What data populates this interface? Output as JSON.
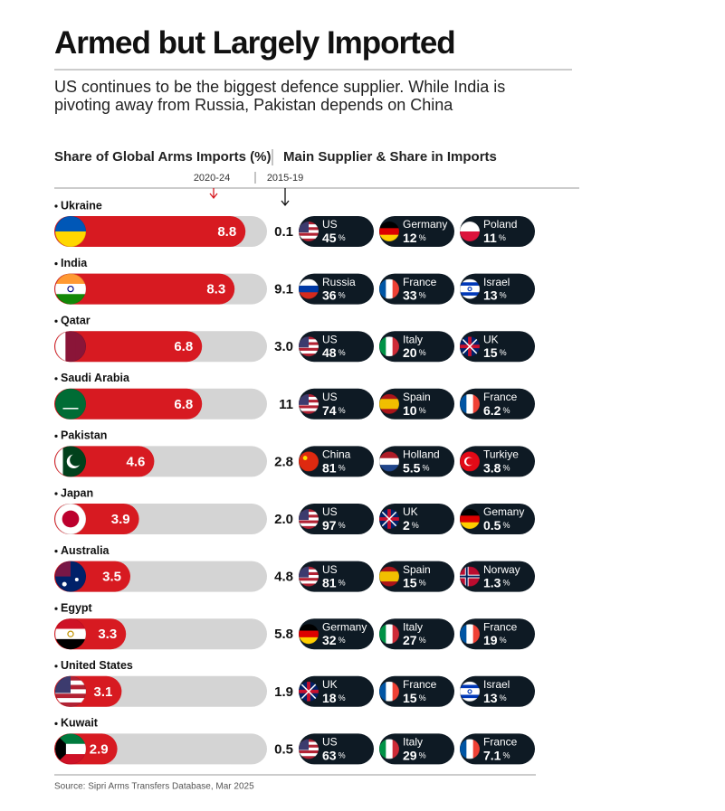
{
  "chart_data": {
    "type": "bar",
    "title": "Armed but Largely Imported",
    "subtitle": "US continues to be the biggest defence supplier. While India is pivoting away from Russia, Pakistan depends on China",
    "left_header": "Share of Global Arms Imports (%)",
    "right_header": "Main Supplier & Share in Imports",
    "categories": [
      "Ukraine",
      "India",
      "Qatar",
      "Saudi Arabia",
      "Pakistan",
      "Japan",
      "Australia",
      "Egypt",
      "United States",
      "Kuwait"
    ],
    "series": [
      {
        "name": "2020-24",
        "color": "#d71a21",
        "values": [
          8.8,
          8.3,
          6.8,
          6.8,
          4.6,
          3.9,
          3.5,
          3.3,
          3.1,
          2.9
        ]
      },
      {
        "name": "2015-19",
        "color": "#111111",
        "values": [
          0.1,
          9.1,
          3.0,
          11,
          2.8,
          2.0,
          4.8,
          5.8,
          1.9,
          0.5
        ],
        "value_labels": [
          "0.1",
          "9.1",
          "3.0",
          "11",
          "2.8",
          "2.0",
          "4.8",
          "5.8",
          "1.9",
          "0.5"
        ]
      }
    ],
    "share_unit": "%",
    "suppliers": [
      [
        {
          "name": "US",
          "share": 45
        },
        {
          "name": "Germany",
          "share": 12
        },
        {
          "name": "Poland",
          "share": 11
        }
      ],
      [
        {
          "name": "Russia",
          "share": 36
        },
        {
          "name": "France",
          "share": 33
        },
        {
          "name": "Israel",
          "share": 13
        }
      ],
      [
        {
          "name": "US",
          "share": 48
        },
        {
          "name": "Italy",
          "share": 20
        },
        {
          "name": "UK",
          "share": 15
        }
      ],
      [
        {
          "name": "US",
          "share": 74
        },
        {
          "name": "Spain",
          "share": 10
        },
        {
          "name": "France",
          "share": 6.2
        }
      ],
      [
        {
          "name": "China",
          "share": 81
        },
        {
          "name": "Holland",
          "share": 5.5
        },
        {
          "name": "Turkiye",
          "share": 3.8
        }
      ],
      [
        {
          "name": "US",
          "share": 97
        },
        {
          "name": "UK",
          "share": 2
        },
        {
          "name": "Gemany",
          "share": 0.5
        }
      ],
      [
        {
          "name": "US",
          "share": 81
        },
        {
          "name": "Spain",
          "share": 15
        },
        {
          "name": "Norway",
          "share": 1.3
        }
      ],
      [
        {
          "name": "Germany",
          "share": 32
        },
        {
          "name": "Italy",
          "share": 27
        },
        {
          "name": "France",
          "share": 19
        }
      ],
      [
        {
          "name": "UK",
          "share": 18
        },
        {
          "name": "France",
          "share": 15
        },
        {
          "name": "Israel",
          "share": 13
        }
      ],
      [
        {
          "name": "US",
          "share": 63
        },
        {
          "name": "Italy",
          "share": 29
        },
        {
          "name": "France",
          "share": 7.1
        }
      ]
    ],
    "source": "Source: Sipri Arms Transfers Database, Mar 2025"
  }
}
